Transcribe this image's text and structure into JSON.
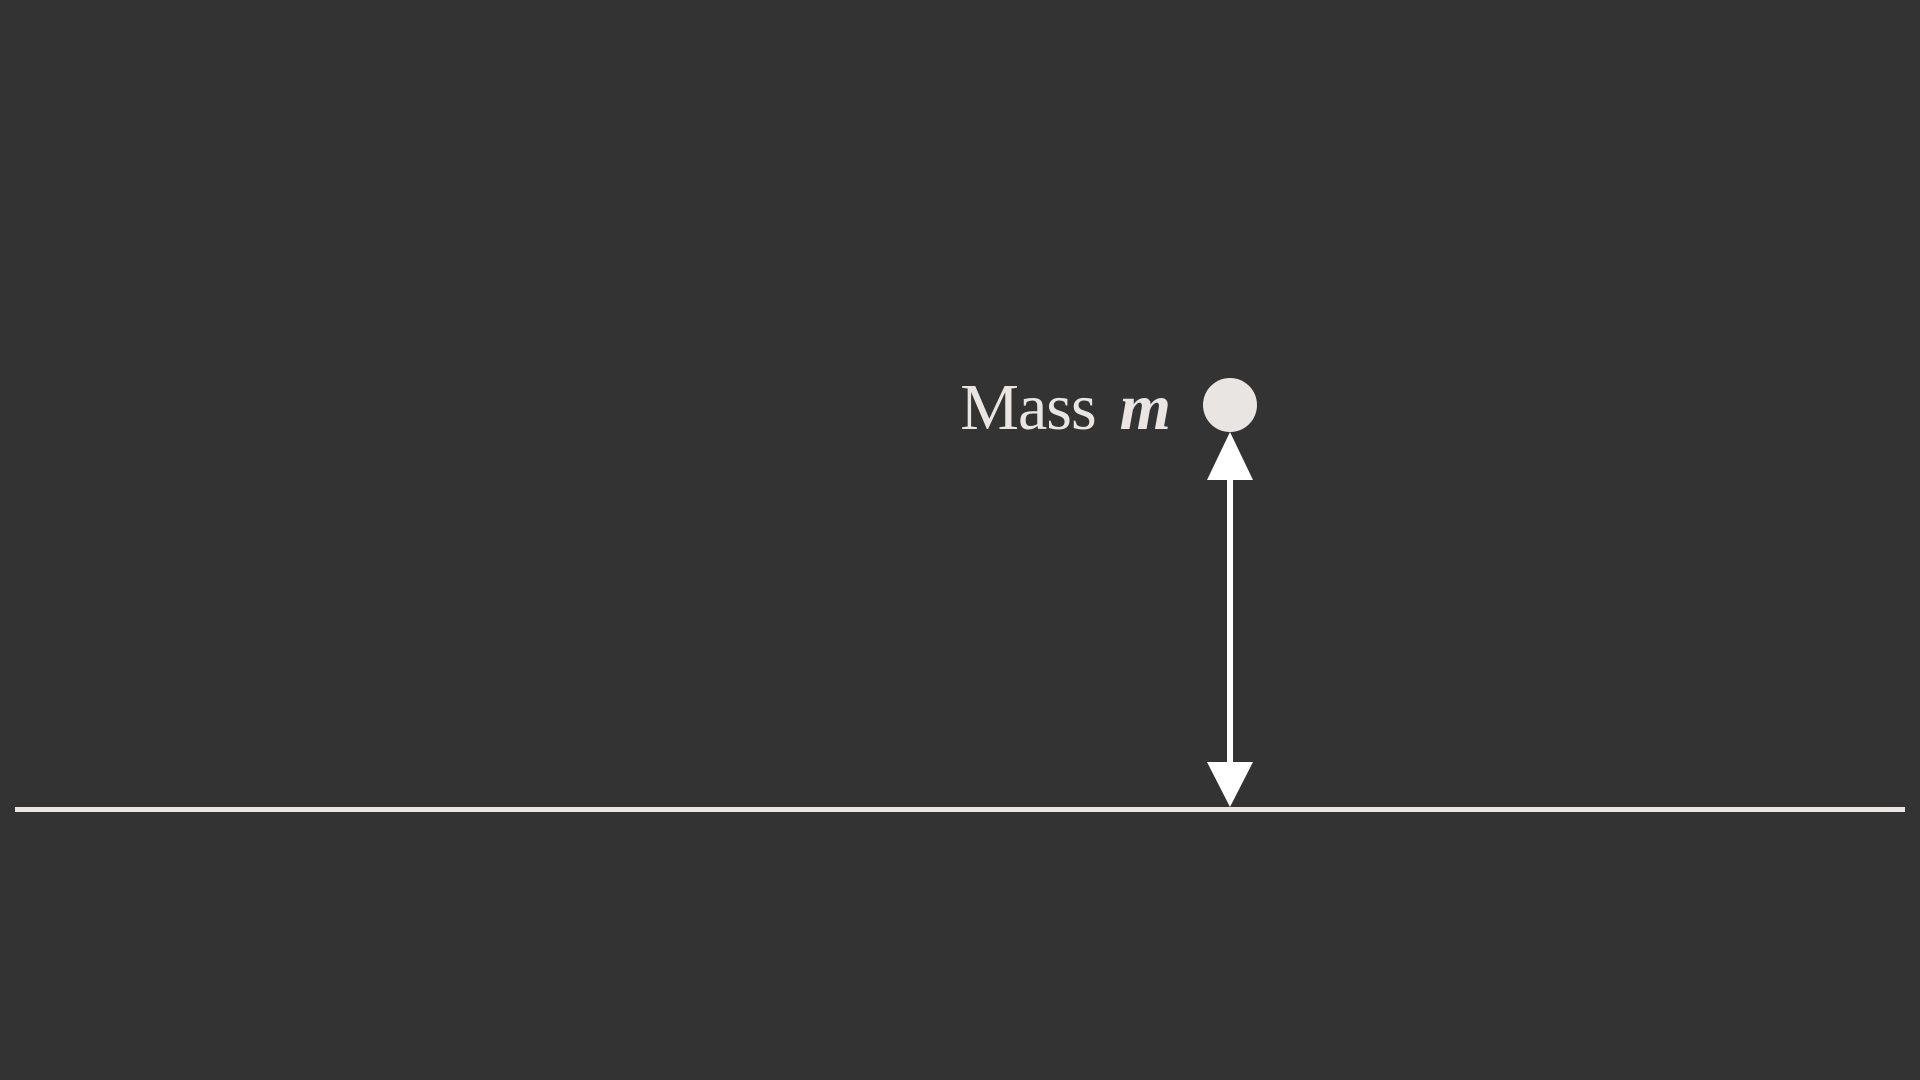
{
  "label": {
    "word": "Mass",
    "symbol": "m"
  },
  "colors": {
    "background": "#333333",
    "ground": "#e9e5e2",
    "mass": "#e9e5e2",
    "arrow": "#ffffff",
    "text": "#e9e5e2"
  }
}
